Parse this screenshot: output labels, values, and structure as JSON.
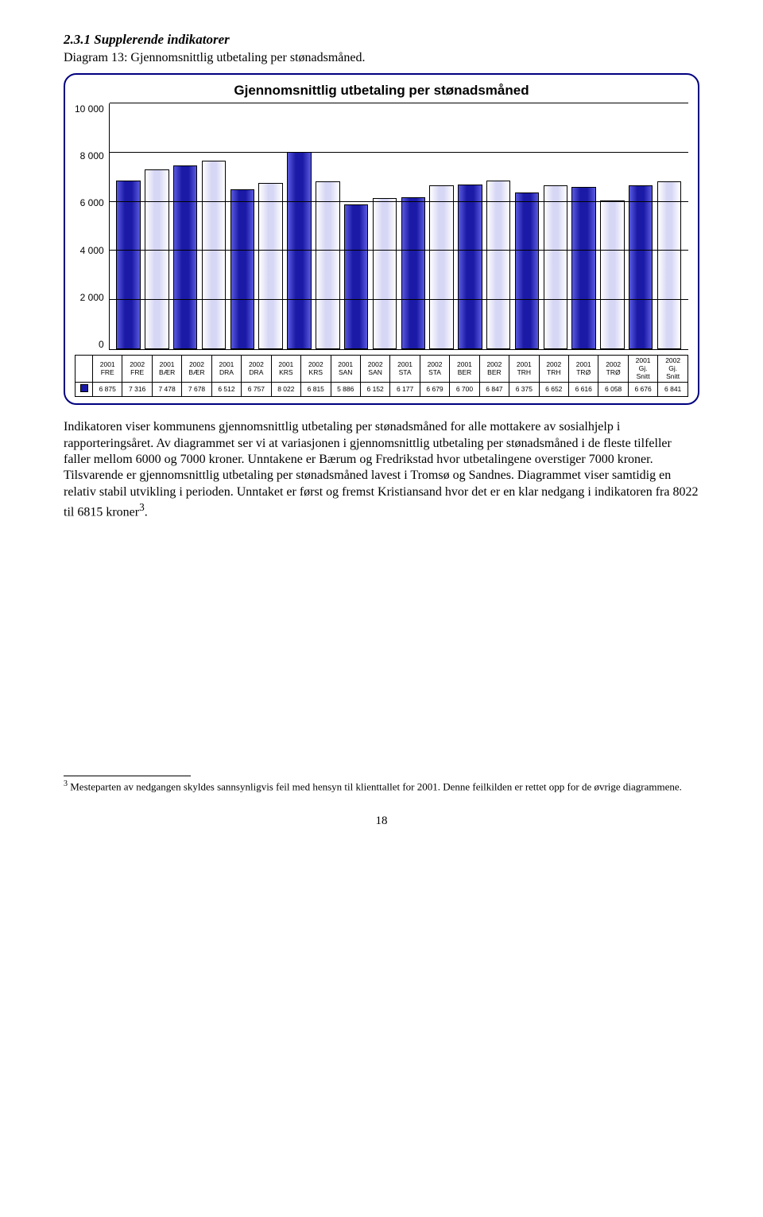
{
  "section_number": "2.3.1 Supplerende indikatorer",
  "diagram_caption": "Diagram 13: Gjennomsnittlig utbetaling per stønadsmåned.",
  "chart": {
    "type": "bar",
    "title": "Gjennomsnittlig utbetaling per stønadsmåned",
    "ylim": [
      0,
      10000
    ],
    "ytick_step": 2000,
    "yticks": [
      "10 000",
      "8 000",
      "6 000",
      "4 000",
      "2 000",
      "0"
    ],
    "background_color": "#ffffff",
    "grid_color": "#000000",
    "bar_border_color": "#000000",
    "categories": [
      {
        "line1": "2001",
        "line2": "FRE"
      },
      {
        "line1": "2002",
        "line2": "FRE"
      },
      {
        "line1": "2001",
        "line2": "BÆR"
      },
      {
        "line1": "2002",
        "line2": "BÆR"
      },
      {
        "line1": "2001",
        "line2": "DRA"
      },
      {
        "line1": "2002",
        "line2": "DRA"
      },
      {
        "line1": "2001",
        "line2": "KRS"
      },
      {
        "line1": "2002",
        "line2": "KRS"
      },
      {
        "line1": "2001",
        "line2": "SAN"
      },
      {
        "line1": "2002",
        "line2": "SAN"
      },
      {
        "line1": "2001",
        "line2": "STA"
      },
      {
        "line1": "2002",
        "line2": "STA"
      },
      {
        "line1": "2001",
        "line2": "BER"
      },
      {
        "line1": "2002",
        "line2": "BER"
      },
      {
        "line1": "2001",
        "line2": "TRH"
      },
      {
        "line1": "2002",
        "line2": "TRH"
      },
      {
        "line1": "2001",
        "line2": "TRØ"
      },
      {
        "line1": "2002",
        "line2": "TRØ"
      },
      {
        "line1": "2001",
        "line2": "Gj.",
        "line3": "Snitt"
      },
      {
        "line1": "2002",
        "line2": "Gj.",
        "line3": "Snitt"
      }
    ],
    "values": [
      6875,
      7316,
      7478,
      7678,
      6512,
      6757,
      8022,
      6815,
      5886,
      6152,
      6177,
      6679,
      6700,
      6847,
      6375,
      6652,
      6616,
      6058,
      6676,
      6841
    ],
    "value_labels": [
      "6 875",
      "7 316",
      "7 478",
      "7 678",
      "6 512",
      "6 757",
      "8 022",
      "6 815",
      "5 886",
      "6 152",
      "6 177",
      "6 679",
      "6 700",
      "6 847",
      "6 375",
      "6 652",
      "6 616",
      "6 058",
      "6 676",
      "6 841"
    ],
    "bar_colors": [
      "#1a1aa6",
      "#d6d6f5",
      "#1a1aa6",
      "#d6d6f5",
      "#1a1aa6",
      "#d6d6f5",
      "#1a1aa6",
      "#d6d6f5",
      "#1a1aa6",
      "#d6d6f5",
      "#1a1aa6",
      "#d6d6f5",
      "#1a1aa6",
      "#d6d6f5",
      "#1a1aa6",
      "#d6d6f5",
      "#1a1aa6",
      "#d6d6f5",
      "#1a1aa6",
      "#d6d6f5"
    ],
    "legend_box_color": "#1a1aa6",
    "gradient_light": "#5a5ae0"
  },
  "body_paragraph": "Indikatoren viser kommunens gjennomsnittlig utbetaling per stønadsmåned for alle mottakere av sosialhjelp i rapporteringsåret. Av diagrammet ser vi at variasjonen i gjennomsnittlig utbetaling per stønadsmåned i de fleste tilfeller faller mellom 6000 og 7000 kroner. Unntakene er Bærum og Fredrikstad hvor utbetalingene overstiger 7000 kroner. Tilsvarende er gjennomsnittlig utbetaling per stønadsmåned lavest i Tromsø og Sandnes. Diagrammet viser samtidig en relativ stabil utvikling i perioden. Unntaket er først og fremst Kristiansand hvor det er en klar nedgang i indikatoren fra 8022 til 6815 kroner",
  "footnote_marker_in_text": "3",
  "body_paragraph_end": ".",
  "footnote_number": "3",
  "footnote_text": " Mesteparten av nedgangen skyldes sannsynligvis feil med hensyn til klienttallet for 2001. Denne feilkilden er rettet opp for de øvrige diagrammene.",
  "page_number": "18"
}
